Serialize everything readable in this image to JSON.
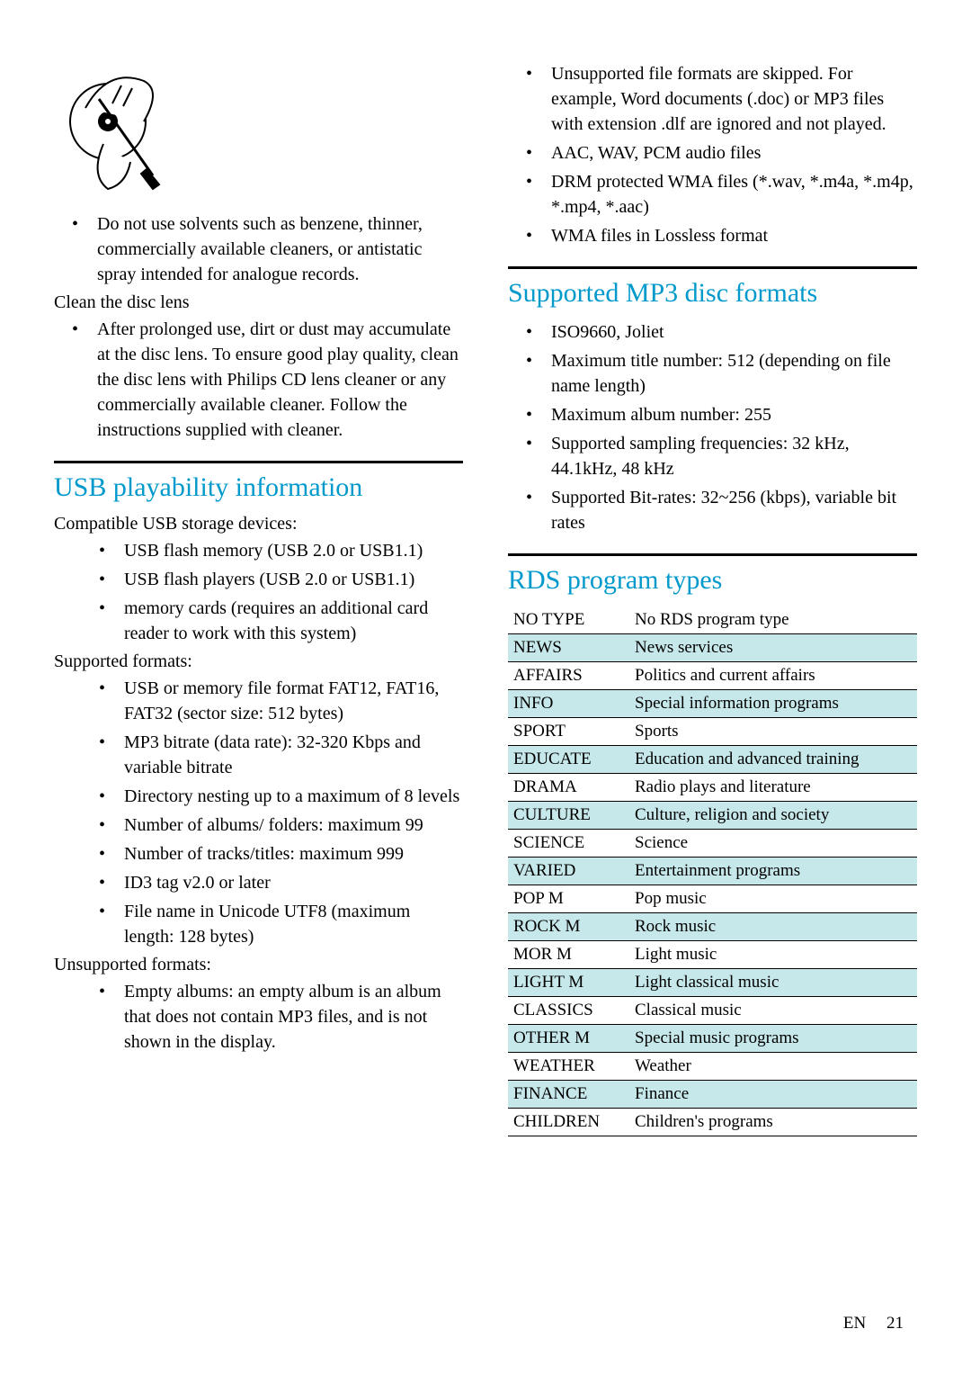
{
  "left": {
    "solvent_warning": "Do not use solvents such as benzene, thinner, commercially available cleaners, or antistatic spray intended for analogue records.",
    "clean_lens_head": "Clean the disc lens",
    "clean_lens": "After prolonged use, dirt or dust may accumulate at the disc lens. To ensure good play quality, clean the disc lens with Philips CD lens cleaner or any commercially available cleaner. Follow the instructions supplied with cleaner.",
    "usb_title": "USB playability information",
    "compat_head": "Compatible USB storage devices:",
    "compat": [
      "USB flash memory (USB 2.0 or USB1.1)",
      "USB flash players (USB 2.0 or USB1.1)",
      "memory cards (requires an additional card reader to work with this system)"
    ],
    "supported_head": "Supported formats:",
    "supported": [
      "USB or memory file format FAT12, FAT16, FAT32 (sector size: 512 bytes)",
      "MP3 bitrate (data rate): 32-320 Kbps and variable bitrate",
      "Directory nesting up to a maximum of 8 levels",
      "Number of albums/ folders: maximum 99",
      "Number of tracks/titles: maximum 999",
      "ID3 tag v2.0 or later",
      "File name in Unicode UTF8 (maximum length: 128 bytes)"
    ],
    "unsupported_head": "Unsupported formats:",
    "unsupported": [
      "Empty albums: an empty album is an album that does not contain MP3 files, and is not shown in the display."
    ]
  },
  "right": {
    "unsupported_cont": [
      "Unsupported file formats are skipped. For example, Word documents (.doc) or MP3 files with extension .dlf are ignored and not played.",
      "AAC, WAV, PCM audio files",
      "DRM protected WMA files (*.wav, *.m4a, *.m4p, *.mp4, *.aac)",
      "WMA files in Lossless format"
    ],
    "mp3_title": "Supported MP3 disc formats",
    "mp3": [
      "ISO9660, Joliet",
      "Maximum title number: 512 (depending on file name length)",
      "Maximum album number: 255",
      "Supported sampling frequencies: 32 kHz, 44.1kHz, 48 kHz",
      "Supported Bit-rates: 32~256 (kbps), variable bit rates"
    ],
    "rds_title": "RDS program types",
    "rds": [
      [
        "NO TYPE",
        "No RDS program type"
      ],
      [
        "NEWS",
        "News services"
      ],
      [
        "AFFAIRS",
        "Politics and current affairs"
      ],
      [
        "INFO",
        "Special information programs"
      ],
      [
        "SPORT",
        "Sports"
      ],
      [
        "EDUCATE",
        "Education and advanced training"
      ],
      [
        "DRAMA",
        "Radio plays and literature"
      ],
      [
        "CULTURE",
        "Culture, religion and society"
      ],
      [
        "SCIENCE",
        "Science"
      ],
      [
        "VARIED",
        "Entertainment programs"
      ],
      [
        "POP M",
        "Pop music"
      ],
      [
        "ROCK M",
        "Rock music"
      ],
      [
        "MOR M",
        "Light music"
      ],
      [
        "LIGHT M",
        "Light classical music"
      ],
      [
        "CLASSICS",
        "Classical music"
      ],
      [
        "OTHER M",
        "Special music programs"
      ],
      [
        "WEATHER",
        "Weather"
      ],
      [
        "FINANCE",
        "Finance"
      ],
      [
        "CHILDREN",
        "Children's programs"
      ]
    ]
  },
  "footer": {
    "lang": "EN",
    "page": "21"
  },
  "style": {
    "heading_color": "#0099cc",
    "alt_row_color": "#c7e8ea",
    "body_fontsize": 20,
    "heading_fontsize": 30
  }
}
